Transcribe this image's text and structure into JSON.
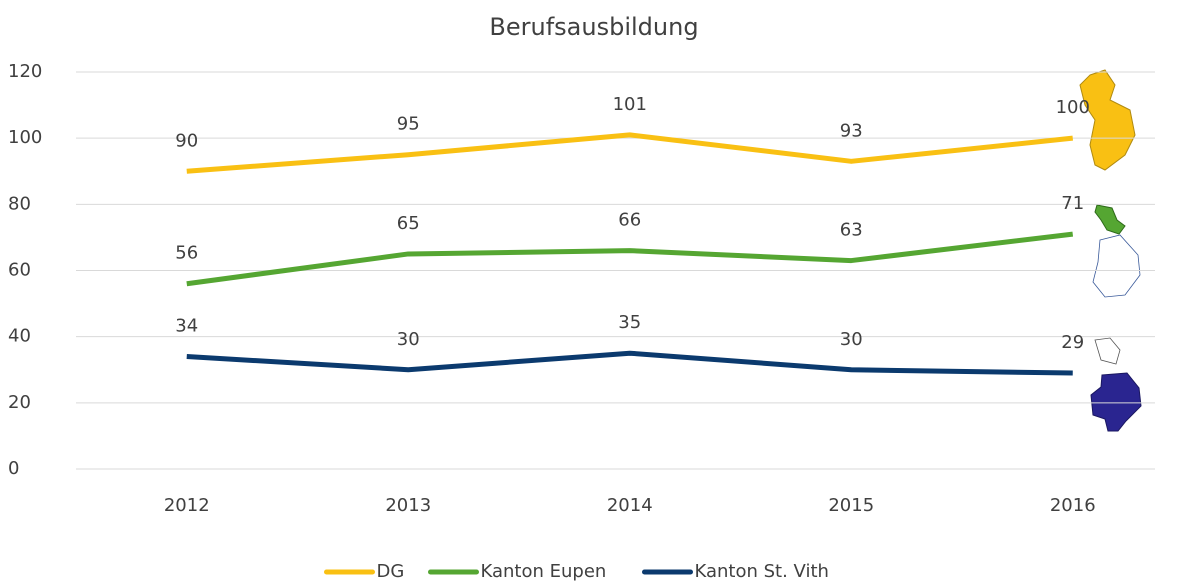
{
  "chart_data": {
    "type": "line",
    "title": "Berufsausbildung",
    "categories": [
      "2012",
      "2013",
      "2014",
      "2015",
      "2016"
    ],
    "series": [
      {
        "name": "DG",
        "color": "#f9c013",
        "values": [
          90,
          95,
          101,
          93,
          100
        ]
      },
      {
        "name": "Kanton Eupen",
        "color": "#55a632",
        "values": [
          56,
          65,
          66,
          63,
          71
        ]
      },
      {
        "name": "Kanton St. Vith",
        "color": "#0b3a6e",
        "values": [
          34,
          30,
          35,
          30,
          29
        ]
      }
    ],
    "ylim": [
      0,
      120
    ],
    "yticks": [
      0,
      20,
      40,
      60,
      80,
      100,
      120
    ],
    "grid": true,
    "legend": "bottom"
  }
}
